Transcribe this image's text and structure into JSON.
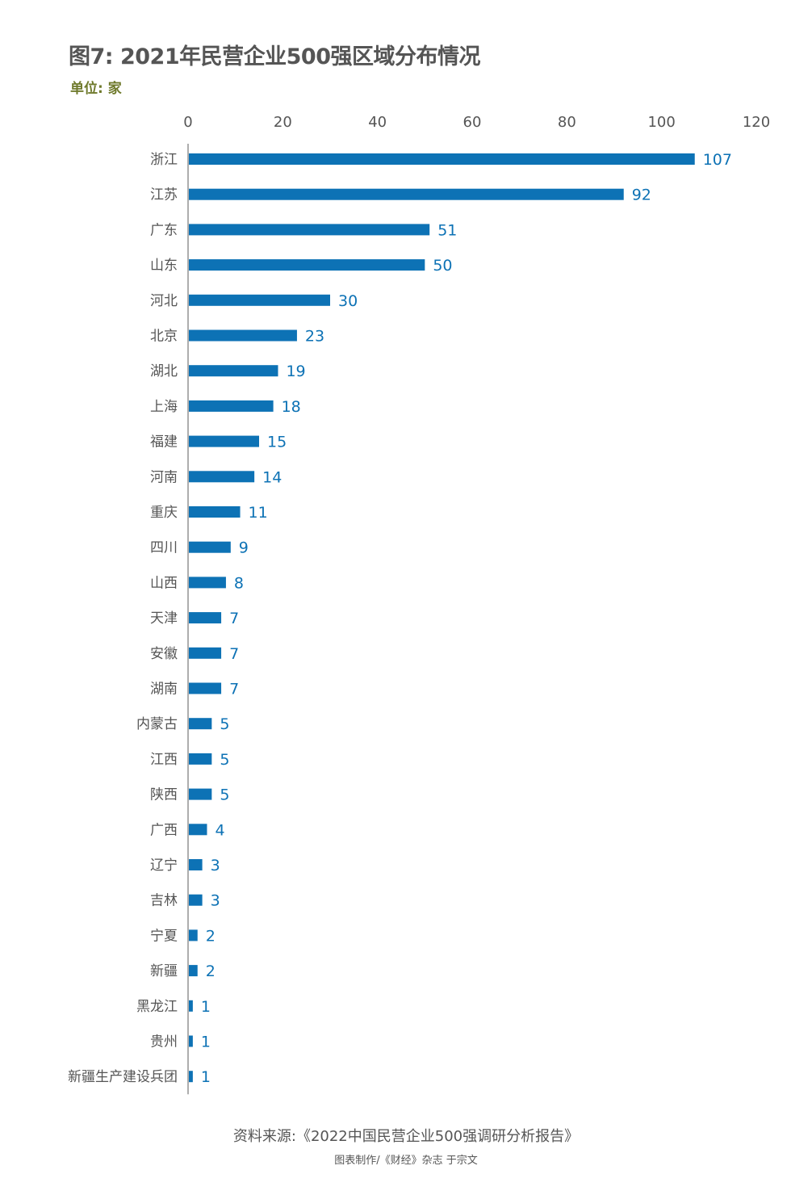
{
  "title": "图7: 2021年民营企业500强区域分布情况",
  "unit_label": "单位: 家",
  "source": "资料来源:《2022中国民营企业500强调研分析报告》",
  "credit": "图表制作/《财经》杂志 于宗文",
  "colors": {
    "bar": "#0d72b5",
    "label": "#0d72b5",
    "text": "#555555",
    "axis": "#777777",
    "unit": "#6f7a2c"
  },
  "chart_data": {
    "type": "bar",
    "orientation": "horizontal",
    "title": "图7: 2021年民营企业500强区域分布情况",
    "xlabel": "",
    "ylabel": "",
    "xlim": [
      0,
      120
    ],
    "ticks": [
      0,
      20,
      40,
      60,
      80,
      100,
      120
    ],
    "axis_position": "top",
    "grid": false,
    "data_labels": true,
    "categories": [
      "浙江",
      "江苏",
      "广东",
      "山东",
      "河北",
      "北京",
      "湖北",
      "上海",
      "福建",
      "河南",
      "重庆",
      "四川",
      "山西",
      "天津",
      "安徽",
      "湖南",
      "内蒙古",
      "江西",
      "陕西",
      "广西",
      "辽宁",
      "吉林",
      "宁夏",
      "新疆",
      "黑龙江",
      "贵州",
      "新疆生产建设兵团"
    ],
    "values": [
      107,
      92,
      51,
      50,
      30,
      23,
      19,
      18,
      15,
      14,
      11,
      9,
      8,
      7,
      7,
      7,
      5,
      5,
      5,
      4,
      3,
      3,
      2,
      2,
      1,
      1,
      1
    ]
  }
}
